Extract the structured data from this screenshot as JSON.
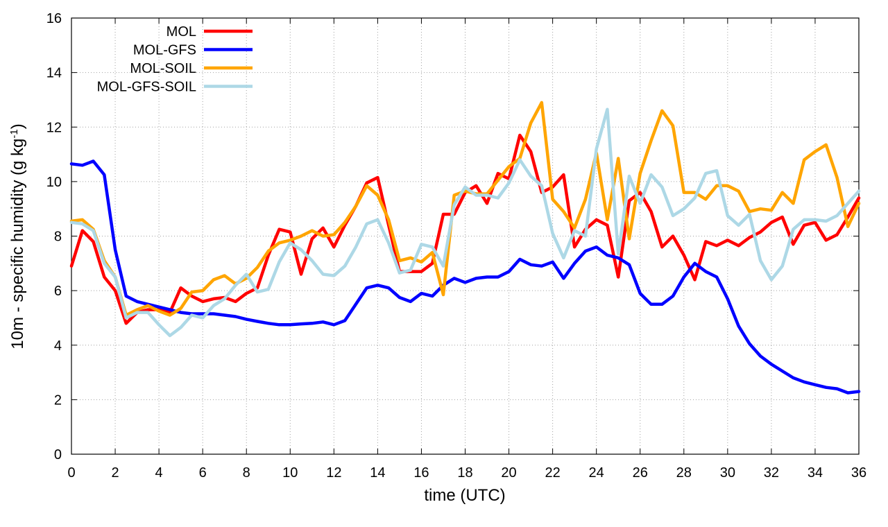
{
  "chart_data": {
    "type": "line",
    "title": "",
    "xlabel": "time (UTC)",
    "ylabel_main": "10m - specific humidity (g kg",
    "ylabel_sup": "-1",
    "ylabel_close": ")",
    "xlim": [
      0,
      36
    ],
    "ylim": [
      0,
      16
    ],
    "xticks": [
      0,
      2,
      4,
      6,
      8,
      10,
      12,
      14,
      16,
      18,
      20,
      22,
      24,
      26,
      28,
      30,
      32,
      34,
      36
    ],
    "yticks": [
      0,
      2,
      4,
      6,
      8,
      10,
      12,
      14,
      16
    ],
    "grid": true,
    "legend_position": "top-left",
    "x": [
      0,
      0.5,
      1,
      1.5,
      2,
      2.5,
      3,
      3.5,
      4,
      4.5,
      5,
      5.5,
      6,
      6.5,
      7,
      7.5,
      8,
      8.5,
      9,
      9.5,
      10,
      10.5,
      11,
      11.5,
      12,
      12.5,
      13,
      13.5,
      14,
      14.5,
      15,
      15.5,
      16,
      16.5,
      17,
      17.5,
      18,
      18.5,
      19,
      19.5,
      20,
      20.5,
      21,
      21.5,
      22,
      22.5,
      23,
      23.5,
      24,
      24.5,
      25,
      25.5,
      26,
      26.5,
      27,
      27.5,
      28,
      28.5,
      29,
      29.5,
      30,
      30.5,
      31,
      31.5,
      32,
      32.5,
      33,
      33.5,
      34,
      34.5,
      35,
      35.5,
      36
    ],
    "series": [
      {
        "name": "MOL",
        "color": "#ff0000",
        "values": [
          6.9,
          8.2,
          7.8,
          6.5,
          6.0,
          4.8,
          5.2,
          5.3,
          5.3,
          5.2,
          6.1,
          5.8,
          5.6,
          5.7,
          5.75,
          5.6,
          5.9,
          6.1,
          7.3,
          8.25,
          8.15,
          6.6,
          7.9,
          8.3,
          7.6,
          8.4,
          9.1,
          9.95,
          10.15,
          8.4,
          6.7,
          6.7,
          6.7,
          7.0,
          8.8,
          8.8,
          9.6,
          9.85,
          9.2,
          10.3,
          10.1,
          11.7,
          11.1,
          9.6,
          9.8,
          10.25,
          7.6,
          8.25,
          8.6,
          8.4,
          6.5,
          9.3,
          9.6,
          8.9,
          7.6,
          8.0,
          7.3,
          6.4,
          7.8,
          7.65,
          7.85,
          7.65,
          7.95,
          8.15,
          8.5,
          8.7,
          7.7,
          8.4,
          8.5,
          7.85,
          8.05,
          8.7,
          9.4
        ]
      },
      {
        "name": "MOL-GFS",
        "color": "#0000ff",
        "values": [
          10.65,
          10.6,
          10.75,
          10.25,
          7.5,
          5.8,
          5.6,
          5.5,
          5.4,
          5.3,
          5.2,
          5.15,
          5.15,
          5.15,
          5.1,
          5.05,
          4.95,
          4.87,
          4.8,
          4.75,
          4.75,
          4.78,
          4.8,
          4.85,
          4.75,
          4.9,
          5.5,
          6.1,
          6.2,
          6.1,
          5.75,
          5.6,
          5.9,
          5.8,
          6.2,
          6.45,
          6.3,
          6.45,
          6.5,
          6.5,
          6.7,
          7.15,
          6.95,
          6.9,
          7.05,
          6.45,
          7.0,
          7.45,
          7.6,
          7.3,
          7.2,
          6.95,
          5.9,
          5.5,
          5.5,
          5.8,
          6.5,
          7.0,
          6.7,
          6.5,
          5.7,
          4.7,
          4.05,
          3.6,
          3.3,
          3.05,
          2.8,
          2.65,
          2.55,
          2.45,
          2.4,
          2.25,
          2.3
        ]
      },
      {
        "name": "MOL-SOIL",
        "color": "#ffa500",
        "values": [
          8.55,
          8.6,
          8.25,
          7.1,
          6.5,
          5.1,
          5.3,
          5.45,
          5.25,
          5.1,
          5.35,
          5.95,
          6.0,
          6.4,
          6.55,
          6.25,
          6.45,
          6.85,
          7.45,
          7.75,
          7.85,
          8.0,
          8.2,
          8.0,
          8.05,
          8.5,
          9.1,
          9.85,
          9.5,
          8.6,
          7.1,
          7.2,
          7.05,
          7.4,
          5.85,
          9.5,
          9.65,
          9.55,
          9.55,
          10.05,
          10.55,
          10.85,
          12.15,
          12.9,
          9.35,
          8.9,
          8.3,
          9.35,
          11.05,
          8.6,
          10.85,
          7.9,
          10.3,
          11.5,
          12.6,
          12.05,
          9.6,
          9.6,
          9.35,
          9.85,
          9.85,
          9.65,
          8.9,
          9.0,
          8.95,
          9.6,
          9.2,
          10.8,
          11.1,
          11.35,
          10.15,
          8.35,
          9.2
        ]
      },
      {
        "name": "MOL-GFS-SOIL",
        "color": "#add8e6",
        "values": [
          8.5,
          8.45,
          8.2,
          7.0,
          6.5,
          5.0,
          5.2,
          5.2,
          4.75,
          4.35,
          4.65,
          5.1,
          5.0,
          5.45,
          5.7,
          6.2,
          6.6,
          5.95,
          6.05,
          7.05,
          7.75,
          7.5,
          7.1,
          6.6,
          6.55,
          6.9,
          7.6,
          8.45,
          8.6,
          7.75,
          6.65,
          6.75,
          7.7,
          7.6,
          6.9,
          9.15,
          9.8,
          9.5,
          9.5,
          9.4,
          9.95,
          10.8,
          10.2,
          9.85,
          8.1,
          7.2,
          8.2,
          8.0,
          11.2,
          12.65,
          7.35,
          10.2,
          9.2,
          10.25,
          9.8,
          8.75,
          9.0,
          9.4,
          10.3,
          10.4,
          8.75,
          8.4,
          8.8,
          7.1,
          6.4,
          6.9,
          8.25,
          8.6,
          8.6,
          8.55,
          8.75,
          9.2,
          9.65
        ]
      }
    ]
  }
}
